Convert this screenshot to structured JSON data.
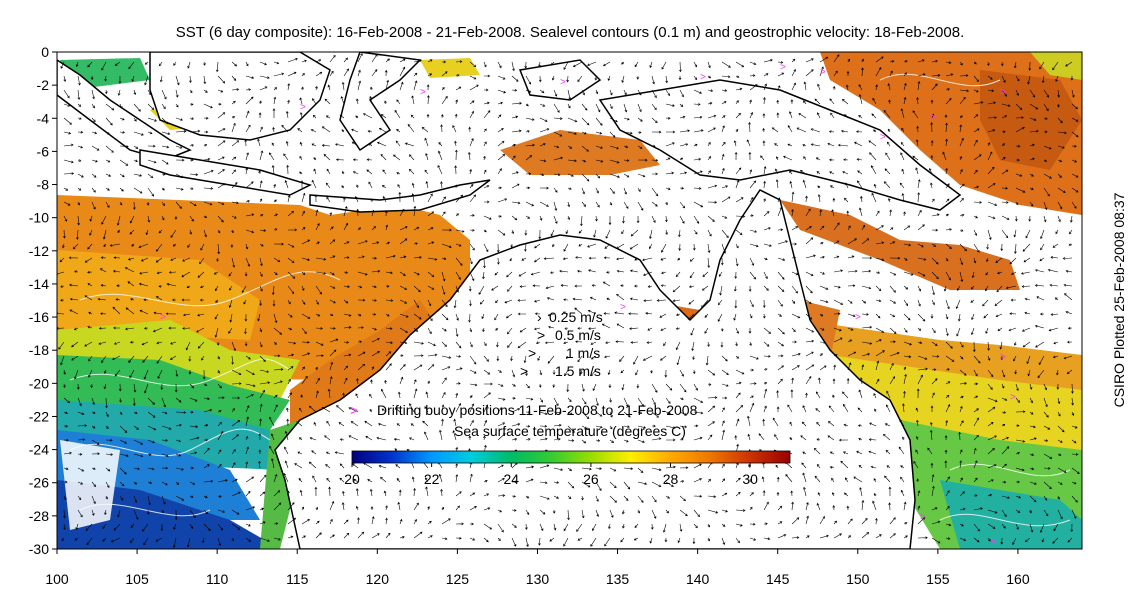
{
  "title": "SST (6 day composite): 16-Feb-2008 - 21-Feb-2008. Sealevel contours (0.1 m) and geostrophic velocity: 18-Feb-2008.",
  "side_label": "CSIRO Plotted 25-Feb-2008 08:37",
  "axes": {
    "x_ticks": [
      "100",
      "105",
      "110",
      "115",
      "120",
      "125",
      "130",
      "135",
      "140",
      "145",
      "150",
      "155",
      "160"
    ],
    "y_ticks": [
      "0",
      "-2",
      "-4",
      "-6",
      "-8",
      "-10",
      "-12",
      "-14",
      "-16",
      "-18",
      "-20",
      "-22",
      "-24",
      "-26",
      "-28",
      "-30"
    ],
    "x_range": [
      100,
      164
    ],
    "y_range": [
      -30,
      0
    ]
  },
  "velocity_key": [
    "0.25 m/s",
    "0.5 m/s",
    "1 m/s",
    "1.5 m/s"
  ],
  "buoy_legend": {
    "marker": ">",
    "label": "Drifting buoy positions 11-Feb-2008 to 21-Feb-2008",
    "color": "#ff33ff"
  },
  "colorbar": {
    "title": "Sea surface temperature (degrees C)",
    "range": [
      20,
      31
    ],
    "ticks": [
      "20",
      "22",
      "24",
      "26",
      "28",
      "30"
    ],
    "colors": [
      "#000080",
      "#0033cc",
      "#0099ff",
      "#00ccdd",
      "#00bb66",
      "#33cc33",
      "#99dd00",
      "#ffee00",
      "#ffaa00",
      "#ee7700",
      "#cc3300",
      "#990000"
    ]
  }
}
